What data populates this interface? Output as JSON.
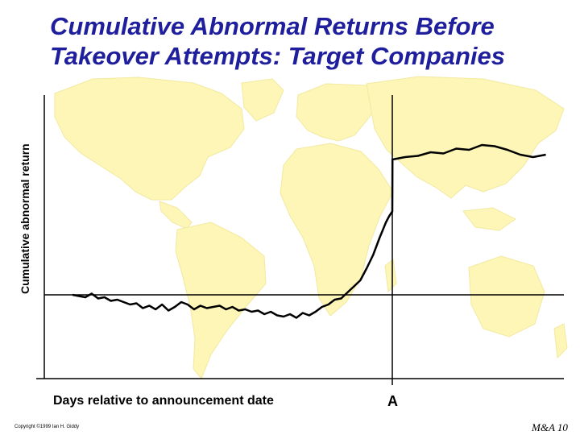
{
  "chart_data": {
    "type": "line",
    "title": [
      "Cumulative Abnormal Returns Before",
      "Takeover Attempts: Target Companies"
    ],
    "xlabel": "Days relative to announcement date",
    "ylabel": "Cumulative abnormal return",
    "xtick_labels": [
      "A"
    ],
    "grid": false,
    "legend": "none",
    "series": [
      {
        "points": [
          [
            -100,
            0.0
          ],
          [
            -98,
            -0.01
          ],
          [
            -96,
            -0.02
          ],
          [
            -94,
            0.01
          ],
          [
            -92,
            -0.03
          ],
          [
            -90,
            -0.02
          ],
          [
            -88,
            -0.05
          ],
          [
            -86,
            -0.04
          ],
          [
            -84,
            -0.06
          ],
          [
            -82,
            -0.08
          ],
          [
            -80,
            -0.07
          ],
          [
            -78,
            -0.11
          ],
          [
            -76,
            -0.09
          ],
          [
            -74,
            -0.12
          ],
          [
            -72,
            -0.08
          ],
          [
            -70,
            -0.13
          ],
          [
            -68,
            -0.1
          ],
          [
            -66,
            -0.06
          ],
          [
            -64,
            -0.08
          ],
          [
            -62,
            -0.12
          ],
          [
            -60,
            -0.09
          ],
          [
            -58,
            -0.11
          ],
          [
            -56,
            -0.1
          ],
          [
            -54,
            -0.09
          ],
          [
            -52,
            -0.12
          ],
          [
            -50,
            -0.1
          ],
          [
            -48,
            -0.13
          ],
          [
            -46,
            -0.12
          ],
          [
            -44,
            -0.14
          ],
          [
            -42,
            -0.13
          ],
          [
            -40,
            -0.16
          ],
          [
            -38,
            -0.14
          ],
          [
            -36,
            -0.17
          ],
          [
            -34,
            -0.18
          ],
          [
            -32,
            -0.16
          ],
          [
            -30,
            -0.19
          ],
          [
            -28,
            -0.15
          ],
          [
            -26,
            -0.17
          ],
          [
            -24,
            -0.14
          ],
          [
            -22,
            -0.1
          ],
          [
            -20,
            -0.08
          ],
          [
            -18,
            -0.04
          ],
          [
            -16,
            -0.03
          ],
          [
            -14,
            0.02
          ],
          [
            -12,
            0.07
          ],
          [
            -10,
            0.12
          ],
          [
            -8,
            0.22
          ],
          [
            -6,
            0.33
          ],
          [
            -4,
            0.47
          ],
          [
            -2,
            0.6
          ],
          [
            -1,
            0.65
          ],
          [
            0,
            0.69
          ],
          [
            0.05,
            1.12
          ],
          [
            4,
            1.14
          ],
          [
            8,
            1.15
          ],
          [
            12,
            1.18
          ],
          [
            16,
            1.17
          ],
          [
            20,
            1.21
          ],
          [
            24,
            1.2
          ],
          [
            28,
            1.24
          ],
          [
            32,
            1.23
          ],
          [
            36,
            1.2
          ],
          [
            40,
            1.16
          ],
          [
            44,
            1.14
          ],
          [
            48,
            1.16
          ]
        ]
      }
    ],
    "colors": {
      "line": "#000000",
      "title": "#1f1f9e",
      "map": "#fdf6b6"
    }
  },
  "footer": {
    "copyright": "Copyright ©1999 Ian H. Giddy",
    "page": "M&A 10"
  }
}
